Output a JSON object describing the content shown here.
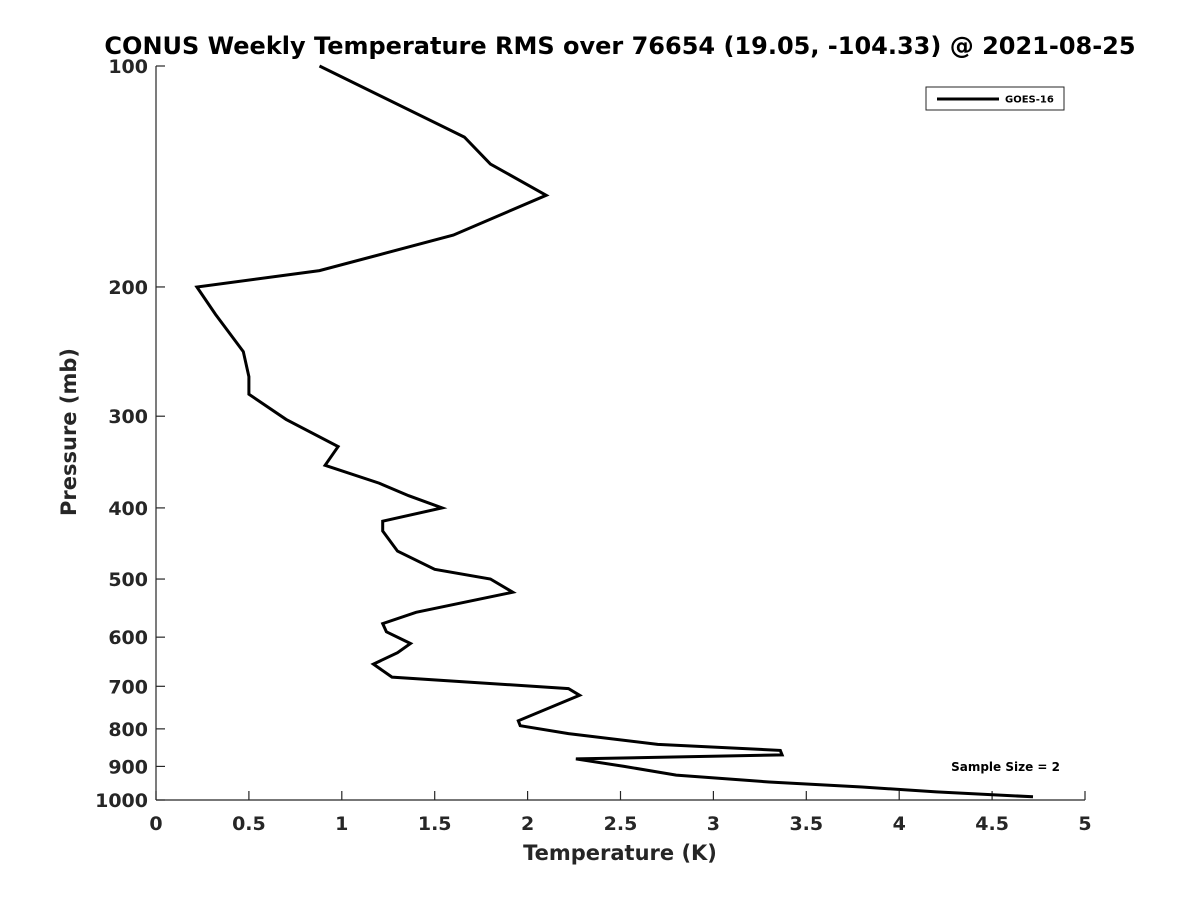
{
  "chart_data": {
    "type": "line",
    "title": "CONUS Weekly Temperature RMS over 76654 (19.05, -104.33) @ 2021-08-25",
    "xlabel": "Temperature (K)",
    "ylabel": "Pressure (mb)",
    "xlim": [
      0,
      5
    ],
    "ylim": [
      100,
      1000
    ],
    "y_scale": "log",
    "y_reversed": true,
    "grid": false,
    "legend_position": "top-right",
    "x_ticks": [
      "0",
      "0.5",
      "1",
      "1.5",
      "2",
      "2.5",
      "3",
      "3.5",
      "4",
      "4.5",
      "5"
    ],
    "y_ticks": [
      "100",
      "200",
      "300",
      "400",
      "500",
      "600",
      "700",
      "800",
      "900",
      "1000"
    ],
    "annotation": "Sample Size = 2",
    "series": [
      {
        "name": "GOES-16",
        "color": "#000000",
        "x": [
          0.88,
          1.66,
          1.8,
          2.1,
          1.6,
          0.88,
          0.22,
          0.32,
          0.47,
          0.5,
          0.5,
          0.7,
          0.98,
          0.91,
          1.2,
          1.36,
          1.54,
          1.22,
          1.22,
          1.3,
          1.5,
          1.8,
          1.92,
          1.4,
          1.22,
          1.24,
          1.37,
          1.3,
          1.17,
          1.27,
          2.22,
          2.28,
          1.95,
          1.96,
          2.22,
          2.7,
          3.36,
          3.37,
          2.26,
          2.52,
          2.8,
          3.3,
          3.8,
          4.2,
          4.72
        ],
        "y": [
          100,
          125,
          136,
          150,
          170,
          190,
          200,
          218,
          245,
          265,
          280,
          303,
          330,
          350,
          370,
          385,
          400,
          417,
          430,
          458,
          485,
          500,
          521,
          555,
          575,
          590,
          612,
          630,
          653,
          680,
          705,
          720,
          780,
          792,
          812,
          840,
          856,
          868,
          879,
          900,
          925,
          945,
          960,
          975,
          990
        ]
      }
    ]
  }
}
